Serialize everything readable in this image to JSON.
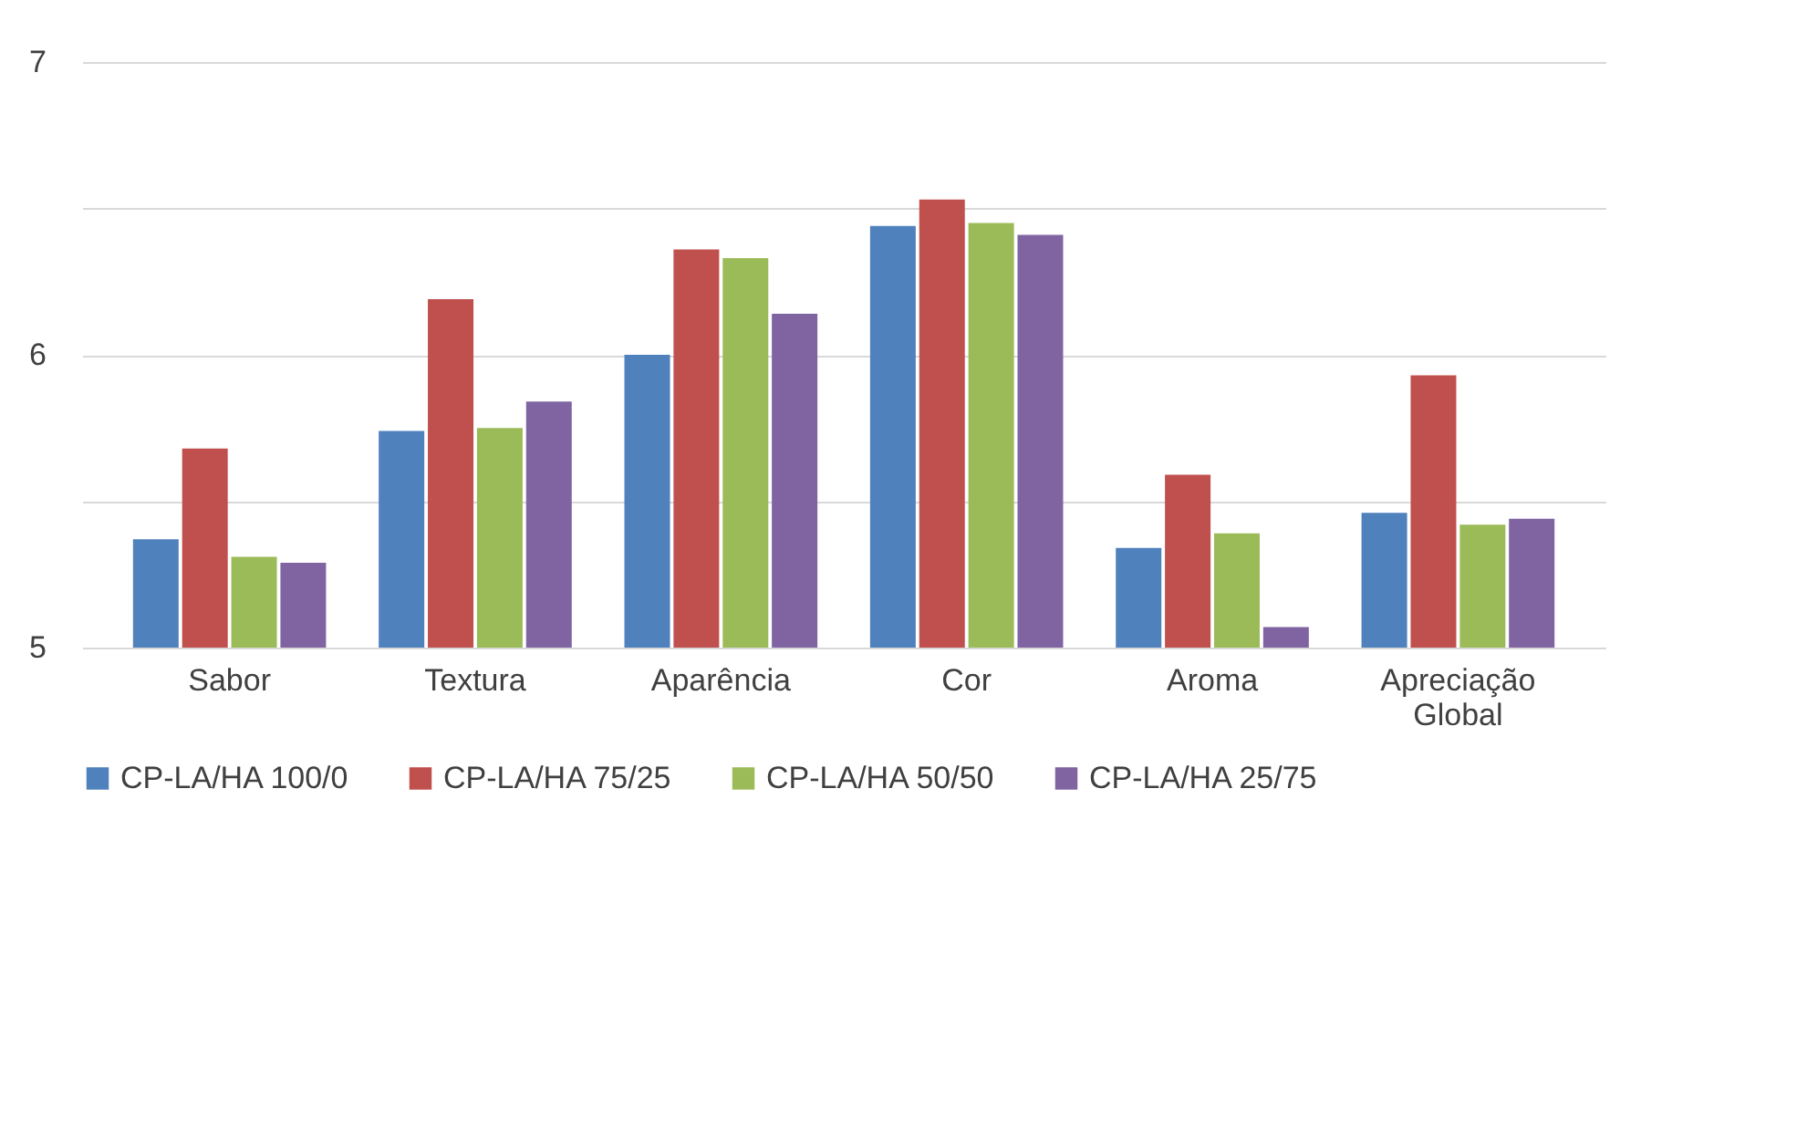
{
  "chart_data": {
    "type": "bar",
    "categories": [
      "Sabor",
      "Textura",
      "Aparência",
      "Cor",
      "Aroma",
      "Apreciação Global"
    ],
    "series": [
      {
        "name": "CP-LA/HA 100/0",
        "color": "#4f81bd",
        "values": [
          5.37,
          5.74,
          6.0,
          6.44,
          5.34,
          5.46
        ]
      },
      {
        "name": "CP-LA/HA 75/25",
        "color": "#c0504d",
        "values": [
          5.68,
          6.19,
          6.36,
          6.53,
          5.59,
          5.93
        ]
      },
      {
        "name": "CP-LA/HA 50/50",
        "color": "#9bbb59",
        "values": [
          5.31,
          5.75,
          6.33,
          6.45,
          5.39,
          5.42
        ]
      },
      {
        "name": "CP-LA/HA 25/75",
        "color": "#8064a2",
        "values": [
          5.29,
          5.84,
          6.14,
          6.41,
          5.07,
          5.44
        ]
      }
    ],
    "ylim": [
      5,
      7
    ],
    "yticks": [
      5,
      {
        "value": 5.5,
        "label": null
      },
      6,
      {
        "value": 6.5,
        "label": null
      },
      7
    ],
    "grid": "y",
    "legend": "bottom"
  }
}
